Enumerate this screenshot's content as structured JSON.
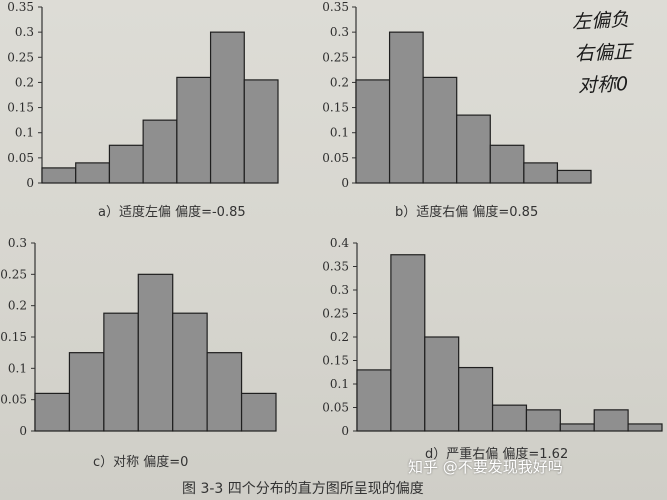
{
  "chart_data": [
    {
      "type": "bar",
      "caption": "a）适度左偏   偏度=-0.85",
      "bin_index": [
        1,
        2,
        3,
        4,
        5,
        6,
        7
      ],
      "values": [
        0.03,
        0.04,
        0.075,
        0.125,
        0.21,
        0.3,
        0.205
      ],
      "ylim": [
        0,
        0.35
      ],
      "yticks": [
        "0",
        "0.05",
        "0.1",
        "0.15",
        "0.2",
        "0.25",
        "0.3",
        "0.35"
      ]
    },
    {
      "type": "bar",
      "caption": "b）适度右偏   偏度=0.85",
      "bin_index": [
        1,
        2,
        3,
        4,
        5,
        6,
        7
      ],
      "values": [
        0.205,
        0.3,
        0.21,
        0.135,
        0.075,
        0.04,
        0.025
      ],
      "ylim": [
        0,
        0.35
      ],
      "yticks": [
        "0",
        "0.05",
        "0.1",
        "0.15",
        "0.2",
        "0.25",
        "0.3",
        "0.35"
      ]
    },
    {
      "type": "bar",
      "caption": "c）对称   偏度=0",
      "bin_index": [
        1,
        2,
        3,
        4,
        5,
        6,
        7
      ],
      "values": [
        0.06,
        0.125,
        0.188,
        0.25,
        0.188,
        0.125,
        0.06
      ],
      "ylim": [
        0,
        0.3
      ],
      "yticks": [
        "0",
        "0.05",
        "0.1",
        "0.15",
        "0.2",
        "0.25",
        "0.3"
      ]
    },
    {
      "type": "bar",
      "caption": "d）严重右偏   偏度=1.62",
      "bin_index": [
        1,
        2,
        3,
        4,
        5,
        6,
        7,
        8,
        9
      ],
      "values": [
        0.13,
        0.375,
        0.2,
        0.135,
        0.055,
        0.045,
        0.015,
        0.045,
        0.015
      ],
      "ylim": [
        0,
        0.4
      ],
      "yticks": [
        "0",
        "0.05",
        "0.1",
        "0.15",
        "0.2",
        "0.25",
        "0.3",
        "0.35",
        "0.4"
      ]
    }
  ],
  "figure_caption": "图 3-3    四个分布的直方图所呈现的偏度",
  "handwritten_notes": [
    "左偏负",
    "右偏正",
    "对称0"
  ],
  "watermark": "知乎 @不要发现我好吗",
  "colors": {
    "bar_fill": "#8f8f8f",
    "bar_stroke": "#1f1f1f",
    "paper": "#d9d8d2"
  }
}
